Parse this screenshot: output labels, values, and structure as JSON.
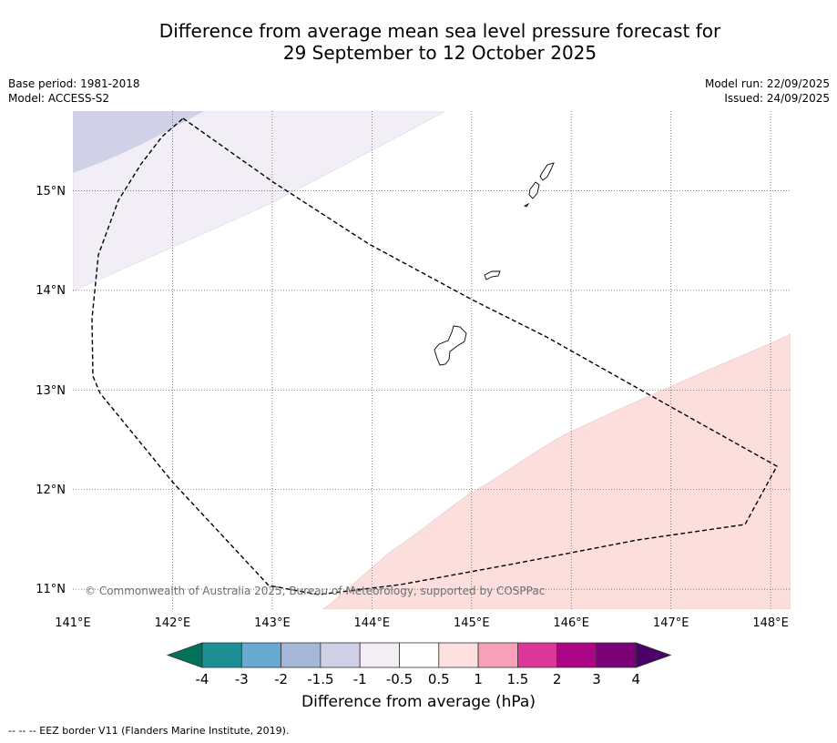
{
  "title": {
    "line1": "Difference from average mean sea level pressure forecast for",
    "line2": "29 September to 12 October 2025"
  },
  "meta_left": {
    "base_period": "Base period: 1981-2018",
    "model": "Model: ACCESS-S2"
  },
  "meta_right": {
    "model_run": "Model run: 22/09/2025",
    "issued": "Issued: 24/09/2025"
  },
  "map": {
    "region": "Guam and Northern Mariana Islands",
    "lon_range": [
      141,
      148.2
    ],
    "lat_range": [
      10.8,
      15.8
    ],
    "lat_labels": [
      "15°N",
      "14°N",
      "13°N",
      "12°N",
      "11°N"
    ],
    "lon_labels": [
      "141°E",
      "142°E",
      "143°E",
      "144°E",
      "145°E",
      "146°E",
      "147°E",
      "148°E"
    ],
    "copyright": "© Commonwealth of Australia 2025, Bureau of Meteorology, supported by COSPPac",
    "anomaly_regions": [
      {
        "range": "-1.5 to -1",
        "color": "#d0d1e6"
      },
      {
        "range": "-1 to -0.5",
        "color": "#f2eef5"
      },
      {
        "range": "0.5 to 1",
        "color": "#fcdfdc"
      }
    ]
  },
  "colorbar": {
    "ticks": [
      "-4",
      "-3",
      "-2",
      "-1.5",
      "-1",
      "-0.5",
      "0.5",
      "1",
      "1.5",
      "2",
      "3",
      "4"
    ],
    "colors": [
      "#05705c",
      "#1d9096",
      "#68aad2",
      "#a5b8d9",
      "#cfd0e6",
      "#f3eef5",
      "#ffffff",
      "#fee0de",
      "#f9a0b9",
      "#dc3798",
      "#ac0587",
      "#7b0178",
      "#4c0069"
    ],
    "label": "Difference from average (hPa)"
  },
  "footnote": "--  --  -- EEZ border V11 (Flanders Marine Institute, 2019)."
}
